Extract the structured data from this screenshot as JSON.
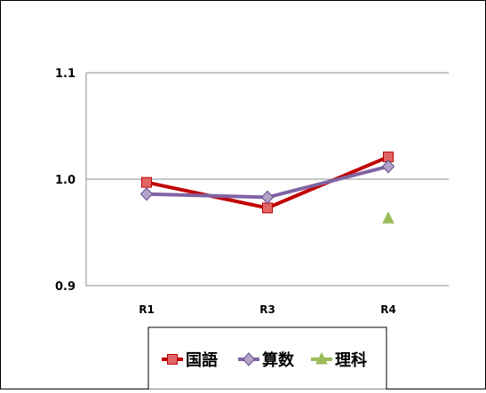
{
  "chart_data": {
    "type": "line",
    "categories": [
      "R1",
      "R3",
      "R4"
    ],
    "ylim": [
      0.9,
      1.1
    ],
    "yticks": [
      "0.9",
      "1.0",
      "1.1"
    ],
    "grid": true,
    "legend_position": "bottom",
    "series": [
      {
        "name": "国語",
        "values": [
          0.997,
          0.973,
          1.021
        ],
        "color": "#c00000",
        "marker": "square",
        "marker_fill": "#e06666",
        "line": true
      },
      {
        "name": "算数",
        "values": [
          0.986,
          0.983,
          1.012
        ],
        "color": "#8064a2",
        "marker": "diamond",
        "marker_fill": "#b3a2c7",
        "line": true
      },
      {
        "name": "理科",
        "values": [
          null,
          null,
          0.963
        ],
        "color": "#9bbb59",
        "marker": "triangle",
        "marker_fill": "#9bbb59",
        "line": false
      }
    ]
  }
}
